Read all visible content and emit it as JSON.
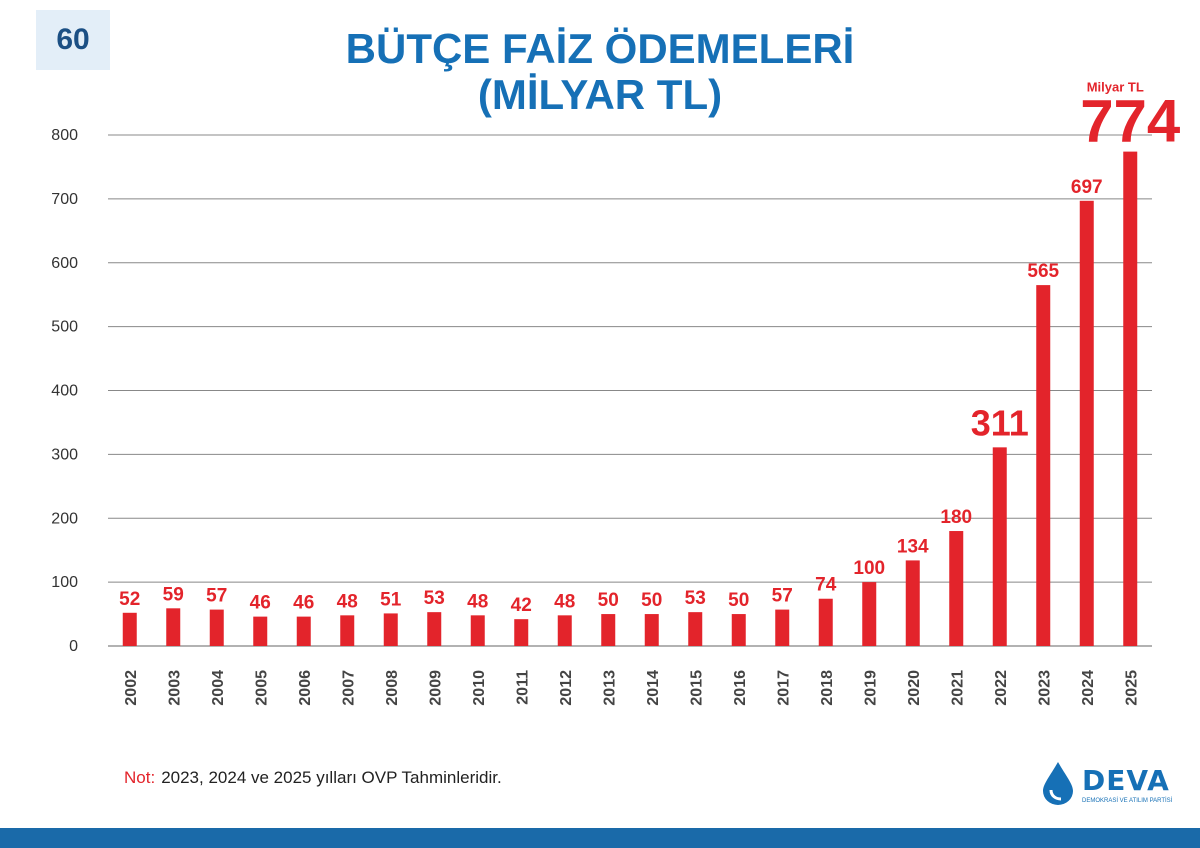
{
  "page_number": "60",
  "title_line1": "BÜTÇE FAİZ ÖDEMELERİ",
  "title_line2": "(MİLYAR TL)",
  "unit_label": "Milyar TL",
  "note": {
    "label": "Not:",
    "text": "2023, 2024 ve 2025 yılları OVP Tahminleridir."
  },
  "logo": {
    "name": "DEVA",
    "subtitle": "DEMOKRASİ VE ATILIM PARTİSİ"
  },
  "colors": {
    "bar": "#e3242b",
    "title": "#1670b6",
    "grid": "#888888",
    "bottom_bar": "#1a6aa9"
  },
  "chart_data": {
    "type": "bar",
    "title": "BÜTÇE FAİZ ÖDEMELERİ (MİLYAR TL)",
    "xlabel": "",
    "ylabel": "",
    "ylim": [
      0,
      800
    ],
    "yticks": [
      0,
      100,
      200,
      300,
      400,
      500,
      600,
      700,
      800
    ],
    "grid": true,
    "categories": [
      "2002",
      "2003",
      "2004",
      "2005",
      "2006",
      "2007",
      "2008",
      "2009",
      "2010",
      "2011",
      "2012",
      "2013",
      "2014",
      "2015",
      "2016",
      "2017",
      "2018",
      "2019",
      "2020",
      "2021",
      "2022",
      "2023",
      "2024",
      "2025"
    ],
    "values": [
      52,
      59,
      57,
      46,
      46,
      48,
      51,
      53,
      48,
      42,
      48,
      50,
      50,
      53,
      50,
      57,
      74,
      100,
      134,
      180,
      311,
      565,
      697,
      774
    ],
    "highlighted": {
      "2022": "large",
      "2025": "xlarge"
    }
  }
}
